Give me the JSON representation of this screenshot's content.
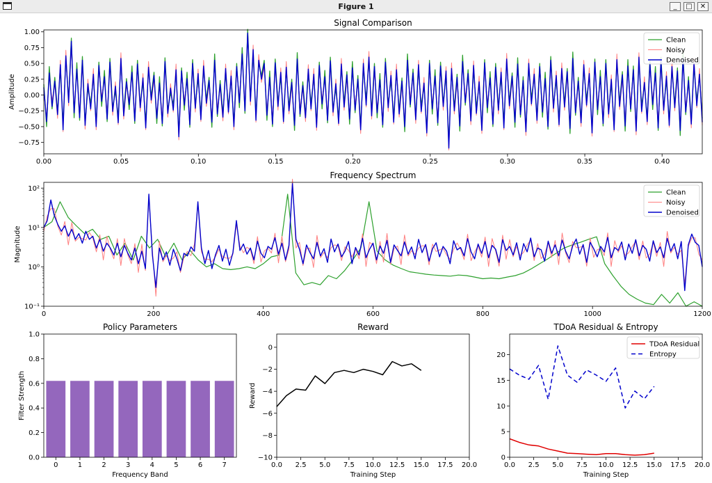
{
  "window": {
    "title": "Figure 1",
    "minimize_glyph": "_",
    "maximize_glyph": "□",
    "close_glyph": "✕",
    "icon": "window-app-icon"
  },
  "chart_data": [
    {
      "id": "signal",
      "type": "line",
      "title": "Signal Comparison",
      "xlabel": "",
      "ylabel": "Amplitude",
      "xlim": [
        0,
        0.426
      ],
      "ylim": [
        -0.93,
        1.03
      ],
      "xticks": [
        0.0,
        0.05,
        0.1,
        0.15,
        0.2,
        0.25,
        0.3,
        0.35,
        0.4
      ],
      "xtick_labels": [
        "0.00",
        "0.05",
        "0.10",
        "0.15",
        "0.20",
        "0.25",
        "0.30",
        "0.35",
        "0.40"
      ],
      "yticks": [
        -0.75,
        -0.5,
        -0.25,
        0.0,
        0.25,
        0.5,
        0.75,
        1.0
      ],
      "ytick_labels": [
        "−0.75",
        "−0.50",
        "−0.25",
        "0.00",
        "0.25",
        "0.50",
        "0.75",
        "1.00"
      ],
      "legend_position": "top-right",
      "series": [
        {
          "name": "Clean",
          "color": "#2ca02c",
          "width": 1.3
        },
        {
          "name": "Noisy",
          "color": "#ff7f7f",
          "width": 1.0
        },
        {
          "name": "Denoised",
          "color": "#0000cc",
          "width": 1.4
        }
      ],
      "x_step": 0.000488,
      "denoised_values": [
        0.12,
        -0.42,
        0.35,
        -0.18,
        0.22,
        -0.31,
        0.48,
        -0.55,
        0.62,
        -0.12,
        0.85,
        -0.28,
        0.41,
        -0.36,
        0.55,
        -0.48,
        0.18,
        -0.22,
        0.33,
        -0.5,
        0.47,
        -0.1,
        0.29,
        -0.38,
        0.52,
        -0.26,
        0.14,
        -0.44,
        0.58,
        -0.33,
        0.21,
        -0.15,
        0.36,
        -0.41,
        0.49,
        -0.2,
        0.27,
        -0.52,
        0.44,
        -0.08,
        0.31,
        -0.37,
        0.19,
        -0.45,
        0.53,
        -0.29,
        0.11,
        -0.24,
        0.4,
        -0.66,
        0.38,
        -0.16,
        0.26,
        -0.47,
        0.5,
        -0.21,
        0.34,
        -0.39,
        0.46,
        -0.13,
        0.23,
        -0.43,
        0.55,
        -0.3,
        0.17,
        -0.35,
        0.42,
        -0.27,
        0.3,
        -0.5,
        0.45,
        -0.12,
        0.65,
        -0.25,
        0.98,
        -0.1,
        0.72,
        -0.4,
        0.55,
        0.25,
        0.5,
        -0.32,
        0.28,
        -0.46,
        0.51,
        -0.18,
        0.36,
        -0.42,
        0.44,
        -0.25,
        0.2,
        -0.48,
        0.57,
        -0.3,
        0.15,
        -0.36,
        0.41,
        -0.22,
        0.33,
        -0.51,
        0.47,
        -0.14,
        0.29,
        -0.4,
        0.54,
        -0.27,
        0.18,
        -0.45,
        0.49,
        -0.19,
        0.32,
        -0.38,
        0.43,
        -0.24,
        0.25,
        -0.55,
        0.5,
        -0.16,
        0.6,
        -0.33,
        0.45,
        -0.28,
        0.24,
        -0.47,
        0.52,
        -0.2,
        0.31,
        -0.43,
        0.4,
        -0.3,
        0.22,
        -0.5,
        0.55,
        -0.15,
        0.35,
        -0.39,
        0.48,
        -0.26,
        0.19,
        -0.6,
        0.5,
        -0.22,
        0.3,
        -0.44,
        0.46,
        -0.18,
        0.38,
        -0.84,
        0.42,
        -0.25,
        0.28,
        -0.49,
        0.53,
        -0.12,
        0.34,
        -0.41,
        0.47,
        -0.29,
        0.21,
        -0.56,
        0.51,
        -0.2,
        0.27,
        -0.46,
        0.44,
        -0.24,
        0.36,
        -0.52,
        0.57,
        -0.17,
        0.3,
        -0.43,
        0.49,
        -0.31,
        0.23,
        -0.58,
        0.5,
        -0.14,
        0.33,
        -0.4,
        0.45,
        -0.27,
        0.26,
        -0.5,
        0.55,
        -0.21,
        0.31,
        -0.47,
        0.42,
        -0.19,
        0.37,
        -0.53,
        0.58,
        -0.28,
        0.22,
        -0.44,
        0.48,
        -0.16,
        0.34,
        -0.6,
        0.52,
        -0.23,
        0.29,
        -0.45,
        0.5,
        -0.3,
        0.25,
        -0.55,
        0.56,
        -0.18,
        0.32,
        -0.49,
        0.46,
        -0.22,
        0.4,
        -0.57,
        0.6,
        -0.26,
        0.2,
        -0.42,
        0.5,
        -0.15,
        0.35,
        -0.52,
        0.54,
        -0.24,
        0.3,
        -0.48,
        0.45,
        -0.2,
        0.38,
        -0.56,
        0.58,
        -0.27,
        0.23,
        -0.46,
        0.51,
        -0.17,
        0.33,
        -0.43
      ],
      "clean_offsets": [
        0.05,
        -0.08,
        0.1,
        -0.04,
        0.06
      ],
      "noisy_offsets": [
        -0.06,
        0.07,
        -0.03,
        0.09,
        -0.05
      ]
    },
    {
      "id": "spectrum",
      "type": "line",
      "title": "Frequency Spectrum",
      "xlabel": "",
      "ylabel": "Magnitude",
      "yscale": "log",
      "xlim": [
        0,
        1200
      ],
      "ylim": [
        0.1,
        140
      ],
      "xticks": [
        0,
        200,
        400,
        600,
        800,
        1000,
        1200
      ],
      "xtick_labels": [
        "0",
        "200",
        "400",
        "600",
        "800",
        "1000",
        "1200"
      ],
      "yticks": [
        0.1,
        1,
        10,
        100
      ],
      "ytick_labels": [
        "10⁻¹",
        "10⁰",
        "10¹",
        "10²"
      ],
      "legend_position": "top-right",
      "series": [
        {
          "name": "Clean",
          "color": "#2ca02c",
          "width": 1.2
        },
        {
          "name": "Noisy",
          "color": "#ff7f7f",
          "width": 1.0
        },
        {
          "name": "Denoised",
          "color": "#0000cc",
          "width": 1.4
        }
      ],
      "x_step": 6,
      "denoised_values": [
        10,
        15,
        50,
        20,
        12,
        8,
        11,
        6,
        9,
        5,
        7,
        4,
        8,
        5,
        6,
        3,
        5,
        2.5,
        4,
        3,
        2,
        4,
        1.8,
        3.5,
        2.2,
        1.5,
        3,
        1.2,
        2.5,
        0.9,
        70,
        2,
        0.3,
        3,
        1.5,
        2.4,
        1.1,
        2.8,
        1.6,
        0.8,
        2.2,
        1.9,
        3.2,
        2.5,
        45,
        3,
        1.2,
        2.6,
        0.9,
        2,
        3.5,
        1.4,
        2.8,
        1.1,
        2.3,
        15,
        2.6,
        3.8,
        2.1,
        3,
        1.5,
        4.5,
        2.2,
        1.7,
        3.3,
        2.8,
        5.5,
        2.1,
        4,
        1.5,
        3.5,
        130,
        5,
        2.8,
        1.2,
        3.6,
        2.3,
        1.6,
        4.2,
        1.9,
        2.9,
        1.3,
        5.1,
        2.4,
        3.8,
        1.8,
        2.5,
        4.4,
        1.2,
        3.1,
        2,
        5.3,
        1.7,
        2.8,
        4,
        1.5,
        3.4,
        2.2,
        4.7,
        1.3,
        3.6,
        2.6,
        1.9,
        4.3,
        2.1,
        3.2,
        1.6,
        5,
        2.3,
        3.7,
        1.4,
        2.9,
        4.1,
        1.8,
        3.3,
        2.5,
        1.2,
        4.6,
        2.7,
        3.1,
        1.9,
        5.2,
        2.4,
        1.6,
        3.8,
        2.2,
        4.4,
        1.7,
        3.5,
        2.8,
        1.3,
        4.9,
        2.6,
        3.3,
        2,
        4.1,
        1.5,
        3.9,
        2.4,
        5.4,
        1.8,
        3,
        2.7,
        1.4,
        4.5,
        2.2,
        3.6,
        1.9,
        4.8,
        2.5,
        1.6,
        3.4,
        5.1,
        2.1,
        3.7,
        1.3,
        4.2,
        2.9,
        1.8,
        3.3,
        2.4,
        5.6,
        1.7,
        3.1,
        2.6,
        4.3,
        1.5,
        3.8,
        2.2,
        4.9,
        1.9,
        3.5,
        2.8,
        1.4,
        4.6,
        2.3,
        3.2,
        1.7,
        5.3,
        2.5,
        3.9,
        1.6,
        4.4,
        0.25,
        3.6,
        6.8,
        4.2,
        3.5,
        1
      ],
      "clean_values": [
        10,
        14,
        45,
        18,
        11,
        7,
        9,
        5,
        6,
        2,
        4,
        1.5,
        6,
        3,
        5,
        1.8,
        4,
        1.5,
        2.6,
        1.5,
        1,
        1.2,
        0.9,
        0.85,
        0.9,
        1,
        0.9,
        1.2,
        1.8,
        2,
        70,
        0.7,
        0.35,
        0.4,
        0.35,
        0.6,
        0.5,
        0.8,
        1.5,
        3,
        45,
        2.5,
        1.5,
        1.1,
        0.9,
        0.75,
        0.7,
        0.65,
        0.62,
        0.6,
        0.58,
        0.62,
        0.6,
        0.55,
        0.5,
        0.52,
        0.5,
        0.55,
        0.6,
        0.7,
        0.9,
        1.2,
        1.6,
        2.2,
        3,
        3.6,
        4.2,
        5,
        5.8,
        1.2,
        0.6,
        0.32,
        0.2,
        0.15,
        0.12,
        0.11,
        0.2,
        0.12,
        0.22,
        0.1,
        0.13,
        0.1
      ],
      "noisy_offsets": [
        0.8,
        1.3,
        0.6,
        1.5,
        0.9
      ]
    },
    {
      "id": "policy",
      "type": "bar",
      "title": "Policy Parameters",
      "xlabel": "Frequency Band",
      "ylabel": "Filter Strength",
      "categories": [
        "0",
        "1",
        "2",
        "3",
        "4",
        "5",
        "6",
        "7"
      ],
      "values": [
        0.62,
        0.62,
        0.62,
        0.62,
        0.62,
        0.62,
        0.62,
        0.62
      ],
      "ylim": [
        0,
        1.0
      ],
      "yticks": [
        0.0,
        0.2,
        0.4,
        0.6,
        0.8,
        1.0
      ],
      "ytick_labels": [
        "0.0",
        "0.2",
        "0.4",
        "0.6",
        "0.8",
        "1.0"
      ],
      "color": "#9467bd"
    },
    {
      "id": "reward",
      "type": "line",
      "title": "Reward",
      "xlabel": "Training Step",
      "ylabel": "Reward",
      "xlim": [
        0,
        20
      ],
      "ylim": [
        -10,
        1.2
      ],
      "xticks": [
        0,
        2.5,
        5,
        7.5,
        10,
        12.5,
        15,
        17.5,
        20
      ],
      "xtick_labels": [
        "0.0",
        "2.5",
        "5.0",
        "7.5",
        "10.0",
        "12.5",
        "15.0",
        "17.5",
        "20.0"
      ],
      "yticks": [
        -10,
        -8,
        -6,
        -4,
        -2,
        0
      ],
      "ytick_labels": [
        "−10",
        "−8",
        "−6",
        "−4",
        "−2",
        "0"
      ],
      "series": [
        {
          "color": "#000000",
          "x": [
            0,
            1,
            2,
            3,
            4,
            5,
            6,
            7,
            8,
            9,
            10,
            11,
            12,
            13,
            14,
            15
          ],
          "y": [
            -5.4,
            -4.4,
            -3.8,
            -3.9,
            -2.6,
            -3.3,
            -2.3,
            -2.1,
            -2.3,
            -2.0,
            -2.2,
            -2.5,
            -1.3,
            -1.7,
            -1.5,
            -2.1
          ]
        }
      ]
    },
    {
      "id": "tdoa",
      "type": "line",
      "title": "TDoA Residual & Entropy",
      "xlabel": "Training Step",
      "ylabel": "",
      "xlim": [
        0,
        20
      ],
      "ylim": [
        0,
        24
      ],
      "xticks": [
        0,
        2.5,
        5,
        7.5,
        10,
        12.5,
        15,
        17.5,
        20
      ],
      "xtick_labels": [
        "0.0",
        "2.5",
        "5.0",
        "7.5",
        "10.0",
        "12.5",
        "15.0",
        "17.5",
        "20.0"
      ],
      "yticks": [
        0,
        5,
        10,
        15,
        20
      ],
      "ytick_labels": [
        "0",
        "5",
        "10",
        "15",
        "20"
      ],
      "legend_position": "top-right",
      "series": [
        {
          "name": "TDoA Residual",
          "color": "#e00000",
          "dash": "",
          "x": [
            0,
            1,
            2,
            3,
            4,
            5,
            6,
            7,
            8,
            9,
            10,
            11,
            12,
            13,
            14,
            15
          ],
          "y": [
            3.6,
            2.9,
            2.4,
            2.2,
            1.6,
            1.2,
            0.8,
            0.7,
            0.6,
            0.5,
            0.7,
            0.7,
            0.5,
            0.4,
            0.5,
            0.8
          ]
        },
        {
          "name": "Entropy",
          "color": "#0000cc",
          "dash": "6,4",
          "x": [
            0,
            1,
            2,
            3,
            4,
            5,
            6,
            7,
            8,
            9,
            10,
            11,
            12,
            13,
            14,
            15
          ],
          "y": [
            17.2,
            16.0,
            15.2,
            17.9,
            11.3,
            21.7,
            16.0,
            14.6,
            17.0,
            16.0,
            14.8,
            17.4,
            9.6,
            12.9,
            11.4,
            13.8
          ]
        }
      ]
    }
  ]
}
